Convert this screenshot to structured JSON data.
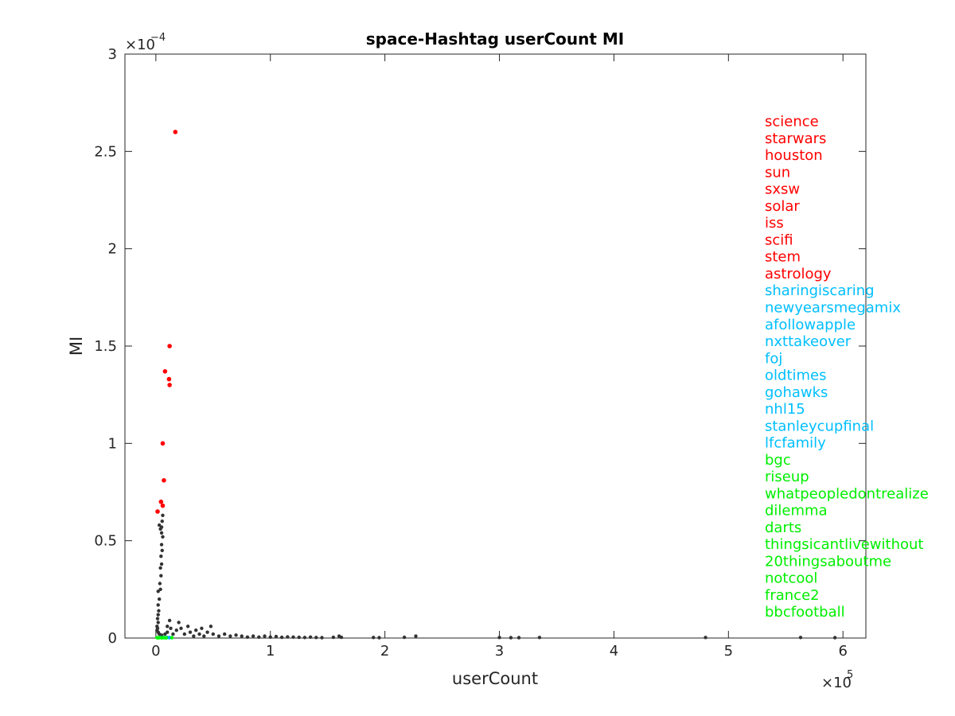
{
  "chart_data": {
    "type": "scatter",
    "title": "space-Hashtag userCount MI",
    "xlabel": "userCount",
    "ylabel": "MI",
    "x_scale_exponent": "×10",
    "x_scale_power": "5",
    "y_scale_exponent": "×10",
    "y_scale_power": "−4",
    "xlim": [
      -0.27,
      6.2
    ],
    "ylim": [
      0,
      3
    ],
    "x_ticks": [
      0,
      1,
      2,
      3,
      4,
      5,
      6
    ],
    "x_tick_labels": [
      "0",
      "1",
      "2",
      "3",
      "4",
      "5",
      "6"
    ],
    "y_ticks": [
      0,
      0.5,
      1,
      1.5,
      2,
      2.5,
      3
    ],
    "y_tick_labels": [
      "0",
      "0.5",
      "1",
      "1.5",
      "2",
      "2.5",
      "3"
    ],
    "grid": false,
    "series": [
      {
        "color": "#333333",
        "points": [
          [
            0.03,
            0.58
          ],
          [
            0.04,
            0.56
          ],
          [
            0.05,
            0.57
          ],
          [
            0.055,
            0.6
          ],
          [
            0.06,
            0.63
          ],
          [
            0.05,
            0.54
          ],
          [
            0.06,
            0.52
          ],
          [
            0.05,
            0.48
          ],
          [
            0.055,
            0.45
          ],
          [
            0.045,
            0.42
          ],
          [
            0.05,
            0.38
          ],
          [
            0.04,
            0.36
          ],
          [
            0.045,
            0.32
          ],
          [
            0.035,
            0.28
          ],
          [
            0.04,
            0.25
          ],
          [
            0.02,
            0.24
          ],
          [
            0.03,
            0.2
          ],
          [
            0.02,
            0.17
          ],
          [
            0.025,
            0.14
          ],
          [
            0.02,
            0.12
          ],
          [
            0.015,
            0.1
          ],
          [
            0.02,
            0.08
          ],
          [
            0.01,
            0.06
          ],
          [
            0.015,
            0.05
          ],
          [
            0.01,
            0.04
          ],
          [
            0.02,
            0.03
          ],
          [
            0.03,
            0.02
          ],
          [
            0.05,
            0.015
          ],
          [
            0.08,
            0.02
          ],
          [
            0.1,
            0.03
          ],
          [
            0.1,
            0.06
          ],
          [
            0.12,
            0.09
          ],
          [
            0.13,
            0.05
          ],
          [
            0.15,
            0.02
          ],
          [
            0.18,
            0.04
          ],
          [
            0.2,
            0.08
          ],
          [
            0.22,
            0.05
          ],
          [
            0.25,
            0.02
          ],
          [
            0.28,
            0.06
          ],
          [
            0.3,
            0.03
          ],
          [
            0.33,
            0.01
          ],
          [
            0.35,
            0.04
          ],
          [
            0.38,
            0.02
          ],
          [
            0.4,
            0.05
          ],
          [
            0.42,
            0.01
          ],
          [
            0.45,
            0.03
          ],
          [
            0.48,
            0.06
          ],
          [
            0.5,
            0.02
          ],
          [
            0.55,
            0.01
          ],
          [
            0.6,
            0.02
          ],
          [
            0.65,
            0.01
          ],
          [
            0.7,
            0.015
          ],
          [
            0.75,
            0.01
          ],
          [
            0.8,
            0.005
          ],
          [
            0.85,
            0.01
          ],
          [
            0.9,
            0.005
          ],
          [
            0.95,
            0.01
          ],
          [
            1.0,
            0.005
          ],
          [
            1.05,
            0.008
          ],
          [
            1.1,
            0.004
          ],
          [
            1.15,
            0.006
          ],
          [
            1.2,
            0.005
          ],
          [
            1.25,
            0.004
          ],
          [
            1.3,
            0.003
          ],
          [
            1.35,
            0.005
          ],
          [
            1.4,
            0.003
          ],
          [
            1.45,
            0.002
          ],
          [
            1.55,
            0.004
          ],
          [
            1.6,
            0.01
          ],
          [
            1.62,
            0.004
          ],
          [
            1.9,
            0.003
          ],
          [
            1.95,
            0.002
          ],
          [
            2.17,
            0.004
          ],
          [
            2.27,
            0.01
          ],
          [
            3.0,
            0.003
          ],
          [
            3.1,
            0.002
          ],
          [
            3.17,
            0.002
          ],
          [
            3.35,
            0.003
          ],
          [
            4.8,
            0.003
          ],
          [
            5.63,
            0.003
          ],
          [
            5.93,
            0.002
          ]
        ]
      },
      {
        "color": "#ff0000",
        "points": [
          [
            0.17,
            2.6
          ],
          [
            0.12,
            1.5
          ],
          [
            0.08,
            1.37
          ],
          [
            0.115,
            1.33
          ],
          [
            0.12,
            1.3
          ],
          [
            0.06,
            1.0
          ],
          [
            0.07,
            0.81
          ],
          [
            0.045,
            0.7
          ],
          [
            0.06,
            0.68
          ],
          [
            0.015,
            0.65
          ]
        ]
      },
      {
        "color": "#00aaff",
        "points": [
          [
            0.04,
            0.003
          ],
          [
            0.06,
            0.002
          ],
          [
            0.08,
            0.002
          ],
          [
            0.1,
            0.003
          ],
          [
            0.12,
            0.002
          ]
        ]
      },
      {
        "color": "#00ff00",
        "points": [
          [
            0.01,
            0.002
          ],
          [
            0.02,
            0.001
          ],
          [
            0.03,
            0.002
          ],
          [
            0.05,
            0.001
          ],
          [
            0.07,
            0.002
          ],
          [
            0.09,
            0.001
          ],
          [
            0.14,
            0.002
          ]
        ]
      }
    ],
    "annotations": [
      {
        "text": "science",
        "color": "#ff0000"
      },
      {
        "text": "starwars",
        "color": "#ff0000"
      },
      {
        "text": "houston",
        "color": "#ff0000"
      },
      {
        "text": "sun",
        "color": "#ff0000"
      },
      {
        "text": "sxsw",
        "color": "#ff0000"
      },
      {
        "text": "solar",
        "color": "#ff0000"
      },
      {
        "text": "iss",
        "color": "#ff0000"
      },
      {
        "text": "scifi",
        "color": "#ff0000"
      },
      {
        "text": "stem",
        "color": "#ff0000"
      },
      {
        "text": "astrology",
        "color": "#ff0000"
      },
      {
        "text": "sharingiscaring",
        "color": "#00bfff"
      },
      {
        "text": "newyearsmegamix",
        "color": "#00bfff"
      },
      {
        "text": "afollowapple",
        "color": "#00bfff"
      },
      {
        "text": "nxttakeover",
        "color": "#00bfff"
      },
      {
        "text": "foj",
        "color": "#00bfff"
      },
      {
        "text": "oldtimes",
        "color": "#00bfff"
      },
      {
        "text": "gohawks",
        "color": "#00bfff"
      },
      {
        "text": "nhl15",
        "color": "#00bfff"
      },
      {
        "text": "stanleycupfinal",
        "color": "#00bfff"
      },
      {
        "text": "lfcfamily",
        "color": "#00bfff"
      },
      {
        "text": "bgc",
        "color": "#00ee00"
      },
      {
        "text": "riseup",
        "color": "#00ee00"
      },
      {
        "text": "whatpeopledontrealize",
        "color": "#00ee00"
      },
      {
        "text": "dilemma",
        "color": "#00ee00"
      },
      {
        "text": "darts",
        "color": "#00ee00"
      },
      {
        "text": "thingsicantlivewithout",
        "color": "#00ee00"
      },
      {
        "text": "20thingsaboutme",
        "color": "#00ee00"
      },
      {
        "text": "notcool",
        "color": "#00ee00"
      },
      {
        "text": "france2",
        "color": "#00ee00"
      },
      {
        "text": "bbcfootball",
        "color": "#00ee00"
      }
    ],
    "annotation_mi_range": [
      2.65,
      0.13
    ]
  }
}
